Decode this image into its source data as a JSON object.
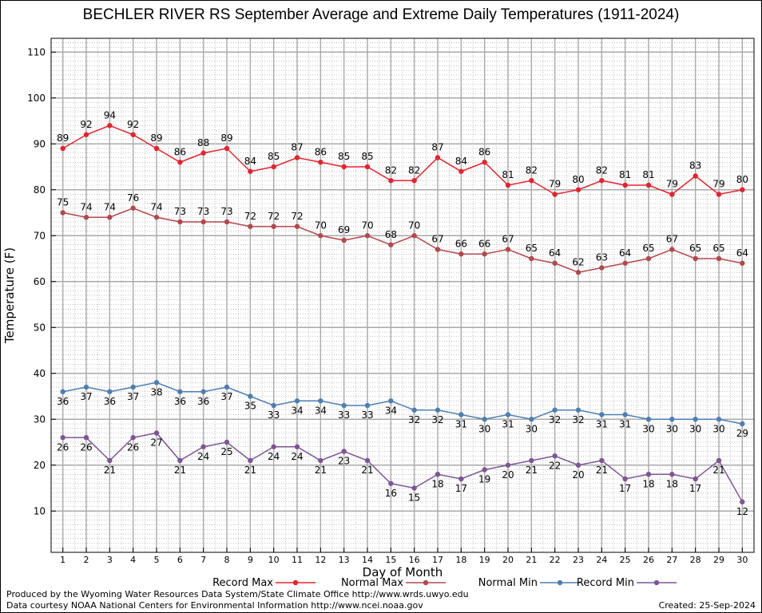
{
  "chart_data": {
    "type": "line",
    "title": "BECHLER RIVER RS September Average and Extreme Daily Temperatures (1911-2024)",
    "xlabel": "Day of Month",
    "ylabel": "Temperature (F)",
    "x": [
      1,
      2,
      3,
      4,
      5,
      6,
      7,
      8,
      9,
      10,
      11,
      12,
      13,
      14,
      15,
      16,
      17,
      18,
      19,
      20,
      21,
      22,
      23,
      24,
      25,
      26,
      27,
      28,
      29,
      30
    ],
    "xlim": [
      0.5,
      30.5
    ],
    "ylim": [
      1,
      113
    ],
    "yticks": [
      10,
      20,
      30,
      40,
      50,
      60,
      70,
      80,
      90,
      100,
      110
    ],
    "grid": true,
    "legend_position": "bottom",
    "series": [
      {
        "name": "Record Max",
        "color": "#e8222c",
        "label_position": "above",
        "values": [
          89,
          92,
          94,
          92,
          89,
          86,
          88,
          89,
          84,
          85,
          87,
          86,
          85,
          85,
          82,
          82,
          87,
          84,
          86,
          81,
          82,
          79,
          80,
          82,
          81,
          81,
          79,
          83,
          79,
          80
        ]
      },
      {
        "name": "Normal Max",
        "color": "#b5474c",
        "label_position": "above",
        "values": [
          75,
          74,
          74,
          76,
          74,
          73,
          73,
          73,
          72,
          72,
          72,
          70,
          69,
          70,
          68,
          70,
          67,
          66,
          66,
          67,
          65,
          64,
          62,
          63,
          64,
          65,
          67,
          65,
          65,
          64
        ]
      },
      {
        "name": "Normal Min",
        "color": "#4b7fb3",
        "label_position": "below",
        "values": [
          36,
          37,
          36,
          37,
          38,
          36,
          36,
          37,
          35,
          33,
          34,
          34,
          33,
          33,
          34,
          32,
          32,
          31,
          30,
          31,
          30,
          32,
          32,
          31,
          31,
          30,
          30,
          30,
          30,
          29
        ]
      },
      {
        "name": "Record Min",
        "color": "#7d5595",
        "label_position": "below",
        "values": [
          26,
          26,
          21,
          26,
          27,
          21,
          24,
          25,
          21,
          24,
          24,
          21,
          23,
          21,
          16,
          15,
          18,
          17,
          19,
          20,
          21,
          22,
          20,
          21,
          17,
          18,
          18,
          17,
          21,
          12
        ]
      }
    ]
  },
  "footer": {
    "produced_by": "Produced by the Wyoming Water Resources Data System/State Climate Office http://www.wrds.uwyo.edu",
    "courtesy": "Data courtesy NOAA National Centers for Environmental Information http://www.ncei.noaa.gov",
    "created": "Created: 25-Sep-2024"
  }
}
